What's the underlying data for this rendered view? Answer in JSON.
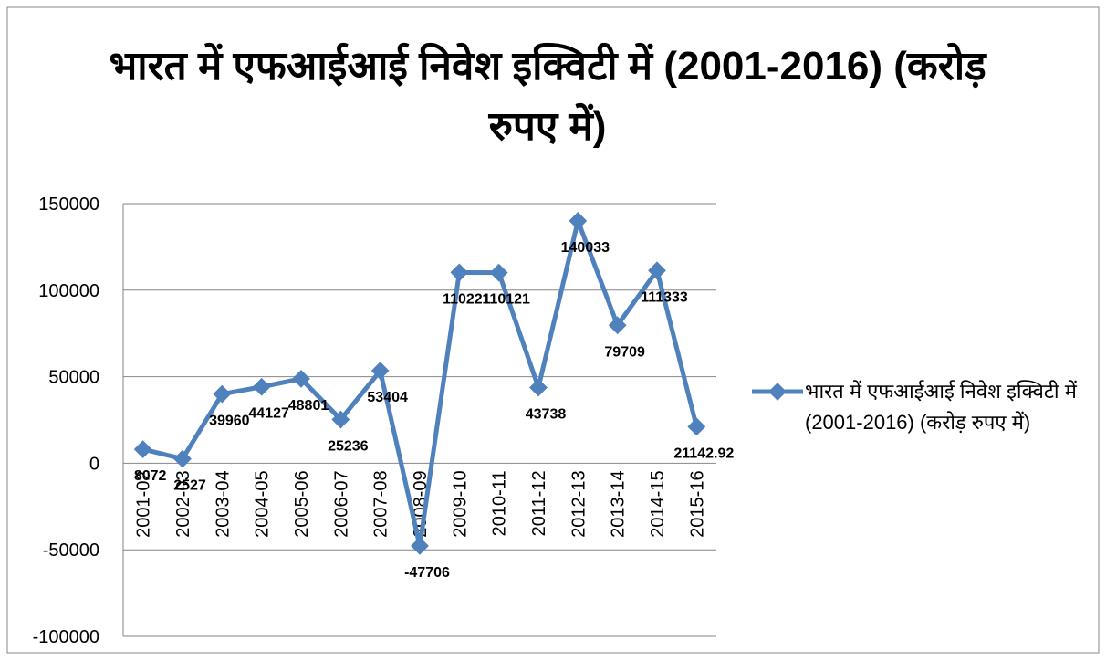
{
  "chart_data": {
    "type": "line",
    "title": "भारत में एफआईआई निवेश इक्विटी में (2001-2016) (करोड़ रुपए में)",
    "categories": [
      "2001-02",
      "2002-03",
      "2003-04",
      "2004-05",
      "2005-06",
      "2006-07",
      "2007-08",
      "2008-09",
      "2009-10",
      "2010-11",
      "2011-12",
      "2012-13",
      "2013-14",
      "2014-15",
      "2015-16"
    ],
    "series": [
      {
        "name": "भारत में एफआईआई निवेश इक्विटी में (2001-2016) (करोड़ रुपए में)",
        "color": "#4f81bd",
        "values": [
          8072,
          2527,
          39960,
          44127,
          48801,
          25236,
          53404,
          -47706,
          110221,
          110121,
          43738,
          140033,
          79709,
          111333,
          21142.92
        ]
      }
    ],
    "ylim": [
      -100000,
      150000
    ],
    "yticks": [
      -100000,
      -50000,
      0,
      50000,
      100000,
      150000
    ],
    "grid": true,
    "legend": "right"
  }
}
